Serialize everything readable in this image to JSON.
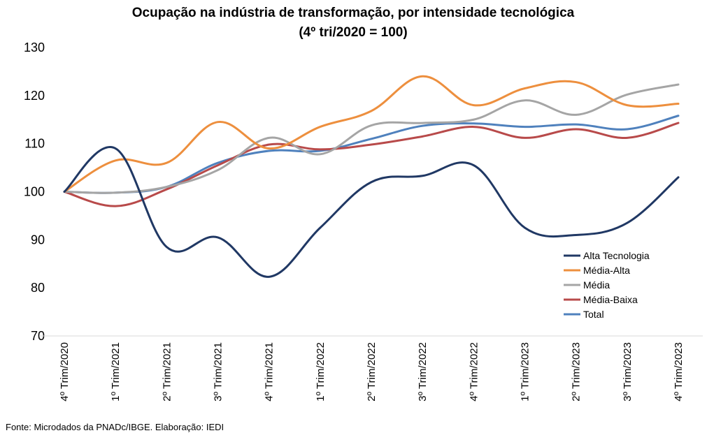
{
  "chart_data": {
    "type": "line",
    "title": "Ocupação na indústria de transformação, por intensidade tecnológica",
    "subtitle": "(4º tri/2020 = 100)",
    "categories": [
      "4º Trim/2020",
      "1º Trim/2021",
      "2º Trim/2021",
      "3º Trim/2021",
      "4º Trim/2021",
      "1º Trim/2022",
      "2º Trim/2022",
      "3º Trim/2022",
      "4º Trim/2022",
      "1º Trim/2023",
      "2º Trim/2023",
      "3º Trim/2023",
      "4º Trim/2023"
    ],
    "ylim": [
      70,
      130
    ],
    "yticks": [
      70,
      80,
      90,
      100,
      110,
      120,
      130
    ],
    "grid": false,
    "legend_position": "right",
    "smooth": true,
    "series": [
      {
        "name": "Alta Tecnologia",
        "color": "#203864",
        "values": [
          100,
          109,
          88.5,
          90.5,
          82.3,
          92.5,
          102,
          103.3,
          105.5,
          92.5,
          91,
          93.5,
          103
        ]
      },
      {
        "name": "Média-Alta",
        "color": "#ED8F3E",
        "values": [
          100,
          106.5,
          106,
          114.5,
          109,
          113.5,
          116.8,
          124,
          118,
          121.5,
          122.8,
          118,
          118.3
        ]
      },
      {
        "name": "Média",
        "color": "#A5A5A5",
        "values": [
          100,
          99.8,
          101,
          104.5,
          111.2,
          107.8,
          113.8,
          114.3,
          115,
          119,
          116,
          120.2,
          122.3
        ]
      },
      {
        "name": "Média-Baixa",
        "color": "#B84A4A",
        "values": [
          100,
          97,
          100.5,
          105.5,
          109.8,
          108.8,
          109.8,
          111.5,
          113.5,
          111.2,
          113,
          111.2,
          114.3
        ]
      },
      {
        "name": "Total",
        "color": "#4F81BD",
        "values": [
          100,
          99.8,
          101,
          106,
          108.5,
          108.5,
          111,
          113.7,
          114.2,
          113.5,
          114,
          113,
          115.8
        ]
      }
    ]
  },
  "footer": {
    "source": "Fonte: Microdados da PNADc/IBGE. Elaboração: IEDI"
  }
}
